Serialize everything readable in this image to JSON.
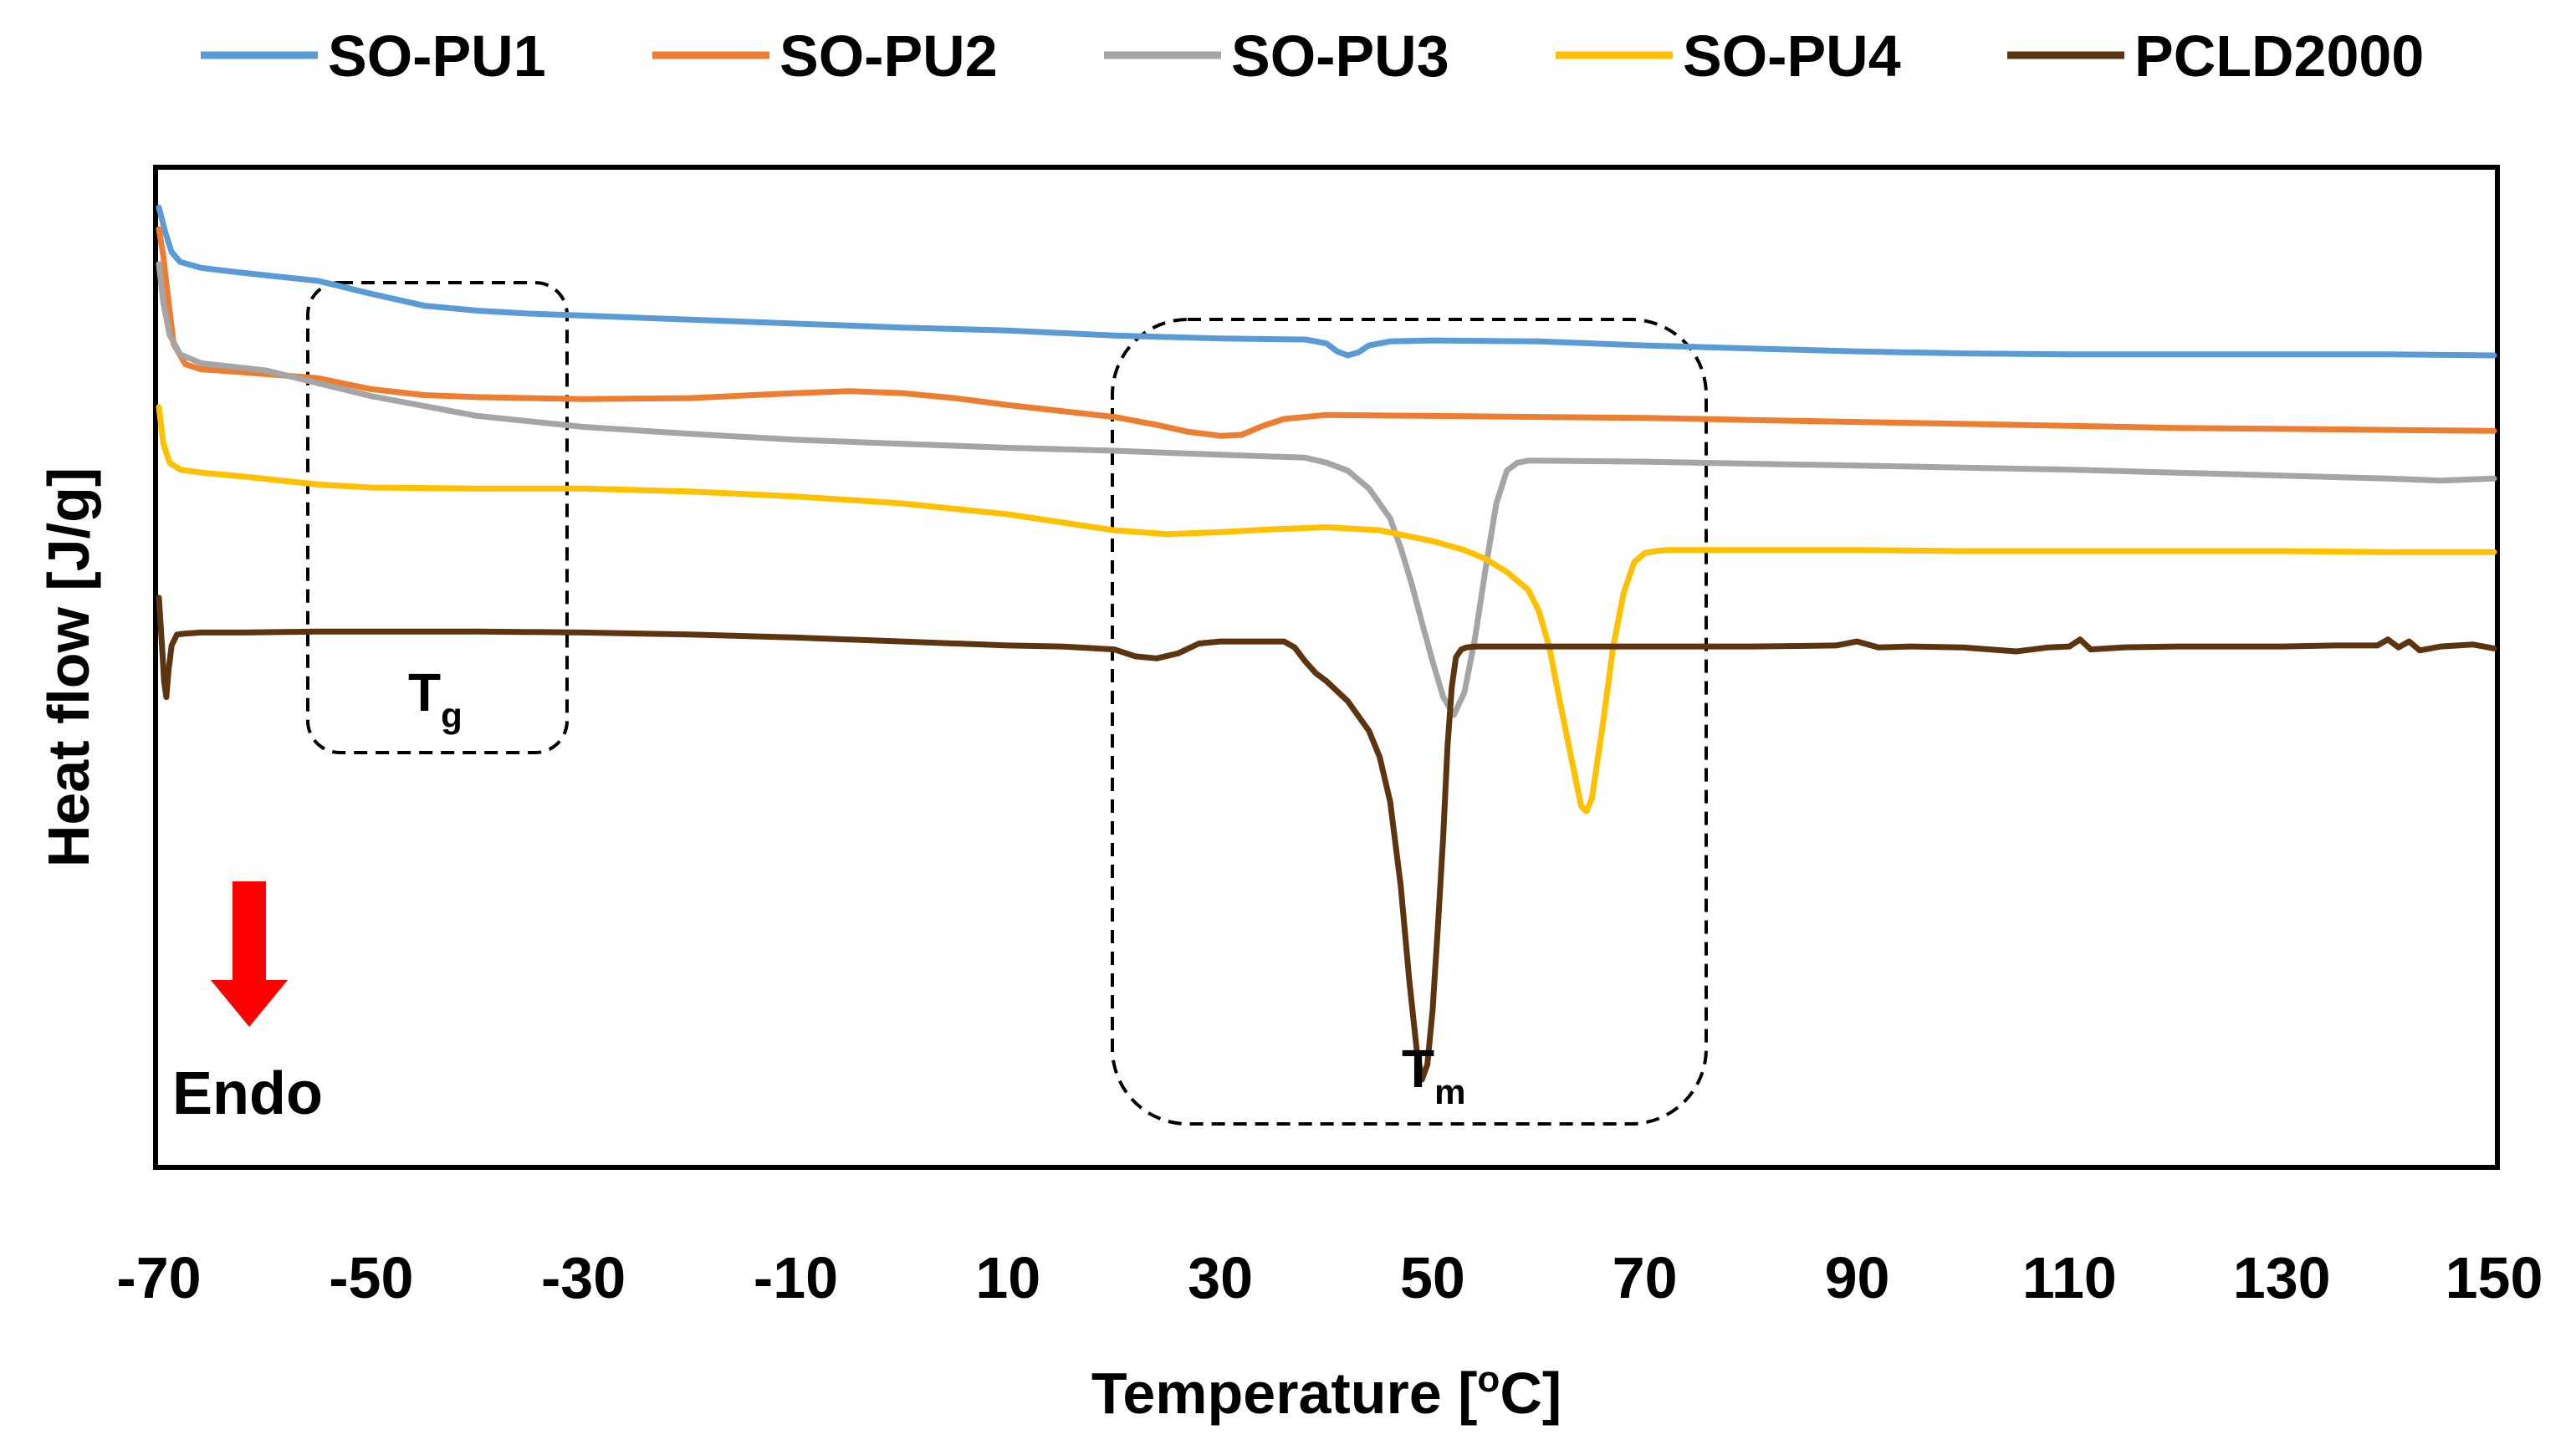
{
  "chart_data": {
    "type": "line",
    "title": "",
    "xlabel": "Temperature [°C]",
    "xlabel_main": "Temperature [",
    "xlabel_sup": "o",
    "xlabel_end": "C]",
    "ylabel": "Heat flow [J/g]",
    "xlim": [
      -70,
      150
    ],
    "ylim": [
      0,
      100
    ],
    "x_ticks": [
      "-70",
      "-50",
      "-30",
      "-10",
      "10",
      "30",
      "50",
      "70",
      "90",
      "110",
      "130",
      "150"
    ],
    "x_tick_values": [
      -70,
      -50,
      -30,
      -10,
      10,
      30,
      50,
      70,
      90,
      110,
      130,
      150
    ],
    "y_ticks_shown": false,
    "legend_position": "top",
    "series": [
      {
        "name": "SO-PU1",
        "color": "#5B9BD5",
        "x": [
          -70,
          -69.4,
          -68.8,
          -68,
          -66,
          -62,
          -55,
          -50,
          -45,
          -40,
          -35,
          -30,
          -20,
          -10,
          0,
          10,
          20,
          30,
          38,
          40,
          41,
          42,
          43,
          44,
          46,
          50,
          60,
          70,
          80,
          90,
          100,
          110,
          120,
          130,
          140,
          150
        ],
        "y": [
          96.3,
          93.8,
          91.8,
          90.8,
          90.2,
          89.7,
          88.9,
          87.6,
          86.4,
          85.9,
          85.6,
          85.4,
          85.0,
          84.6,
          84.2,
          83.9,
          83.4,
          83.1,
          83.0,
          82.6,
          81.8,
          81.4,
          81.7,
          82.4,
          82.8,
          82.9,
          82.8,
          82.4,
          82.1,
          81.8,
          81.6,
          81.5,
          81.5,
          81.5,
          81.5,
          81.4
        ]
      },
      {
        "name": "SO-PU2",
        "color": "#ED7D31",
        "x": [
          -70,
          -69.6,
          -69.2,
          -68.6,
          -67.5,
          -66,
          -62,
          -55,
          -50,
          -45,
          -40,
          -30,
          -20,
          -10,
          -5,
          0,
          5,
          10,
          15,
          20,
          24,
          27,
          30,
          32,
          34,
          36,
          40,
          50,
          60,
          70,
          80,
          90,
          100,
          110,
          120,
          130,
          140,
          150
        ],
        "y": [
          94.1,
          91.5,
          87.7,
          82.5,
          80.5,
          80.0,
          79.7,
          79.1,
          78.0,
          77.4,
          77.2,
          77.0,
          77.1,
          77.6,
          77.8,
          77.6,
          77.1,
          76.4,
          75.8,
          75.2,
          74.4,
          73.7,
          73.3,
          73.4,
          74.3,
          75.0,
          75.4,
          75.3,
          75.2,
          75.1,
          74.9,
          74.7,
          74.5,
          74.3,
          74.1,
          74.0,
          73.9,
          73.8
        ]
      },
      {
        "name": "SO-PU3",
        "color": "#A5A5A5",
        "x": [
          -70,
          -69.6,
          -69,
          -68,
          -66,
          -60,
          -50,
          -40,
          -30,
          -20,
          -10,
          0,
          10,
          20,
          30,
          38,
          40,
          42,
          44,
          46,
          47,
          48,
          49,
          50,
          51,
          52,
          53,
          54,
          55,
          56,
          57,
          58,
          59,
          60,
          70,
          80,
          90,
          100,
          110,
          120,
          130,
          140,
          145,
          150
        ],
        "y": [
          90.6,
          86.8,
          83.5,
          81.5,
          80.6,
          79.9,
          77.3,
          75.3,
          74.2,
          73.5,
          72.9,
          72.5,
          72.1,
          71.8,
          71.4,
          71.1,
          70.6,
          69.8,
          68.0,
          65.0,
          62.0,
          58.5,
          54.5,
          50.6,
          47.0,
          45.2,
          47.5,
          53.0,
          60.0,
          66.5,
          69.8,
          70.6,
          70.8,
          70.8,
          70.7,
          70.5,
          70.3,
          70.1,
          69.9,
          69.6,
          69.3,
          69.0,
          68.8,
          69.0
        ]
      },
      {
        "name": "SO-PU4",
        "color": "#FFC000",
        "x": [
          -70,
          -69.6,
          -69,
          -68,
          -66,
          -62,
          -55,
          -50,
          -40,
          -30,
          -20,
          -10,
          0,
          10,
          15,
          20,
          25,
          30,
          35,
          40,
          45,
          50,
          53,
          55,
          57,
          59,
          60,
          61,
          62,
          63,
          64,
          64.5,
          65,
          66,
          67,
          68,
          69,
          70,
          71,
          72,
          80,
          90,
          100,
          110,
          120,
          130,
          140,
          150
        ],
        "y": [
          76.2,
          72.6,
          70.6,
          69.9,
          69.6,
          69.2,
          68.4,
          68.1,
          68.0,
          68.0,
          67.7,
          67.2,
          66.5,
          65.4,
          64.6,
          63.8,
          63.4,
          63.6,
          63.9,
          64.1,
          63.8,
          62.7,
          61.8,
          60.9,
          59.6,
          57.8,
          55.7,
          52.0,
          46.5,
          41.2,
          36.0,
          35.5,
          36.8,
          44.0,
          52.0,
          57.5,
          60.6,
          61.5,
          61.7,
          61.8,
          61.8,
          61.8,
          61.7,
          61.7,
          61.7,
          61.7,
          61.6,
          61.6
        ]
      },
      {
        "name": "PCLD2000",
        "color": "#5C3510",
        "x": [
          -70,
          -69.7,
          -69.5,
          -69.3,
          -69.1,
          -68.8,
          -68.3,
          -67.5,
          -66,
          -62,
          -55,
          -40,
          -30,
          -20,
          -10,
          0,
          10,
          15,
          20,
          22,
          24,
          26,
          28,
          30,
          36,
          37,
          38,
          39,
          40,
          42,
          44,
          45,
          46,
          47,
          47.8,
          48.5,
          49,
          49.5,
          50,
          50.5,
          51,
          51.4,
          51.8,
          52.2,
          52.7,
          53.2,
          54,
          60,
          70,
          80,
          88,
          90,
          92,
          95,
          100,
          105,
          108,
          110,
          111,
          112,
          115,
          120,
          125,
          130,
          135,
          139,
          140,
          141,
          142,
          143,
          145,
          148,
          150
        ],
        "y": [
          57.0,
          52.0,
          48.5,
          47.0,
          49.6,
          52.2,
          53.3,
          53.4,
          53.5,
          53.5,
          53.6,
          53.6,
          53.5,
          53.3,
          53.0,
          52.6,
          52.2,
          52.1,
          51.8,
          51.1,
          50.9,
          51.4,
          52.4,
          52.6,
          52.6,
          52.0,
          50.6,
          49.4,
          48.6,
          46.6,
          43.6,
          41.0,
          36.5,
          28.0,
          18.5,
          11.5,
          8.5,
          10.0,
          15.5,
          24.0,
          33.0,
          42.0,
          48.0,
          51.0,
          51.8,
          52.0,
          52.1,
          52.1,
          52.1,
          52.1,
          52.2,
          52.6,
          52.0,
          52.1,
          52.0,
          51.6,
          52.0,
          52.1,
          52.8,
          51.8,
          52.0,
          52.1,
          52.1,
          52.1,
          52.2,
          52.2,
          52.8,
          52.0,
          52.6,
          51.7,
          52.1,
          52.3,
          51.9
        ]
      }
    ],
    "annotations": {
      "tg_label": "T",
      "tg_sub": "g",
      "tm_label": "T",
      "tm_sub": "m",
      "endo_label": "Endo",
      "arrow_color": "#FF0000"
    }
  }
}
